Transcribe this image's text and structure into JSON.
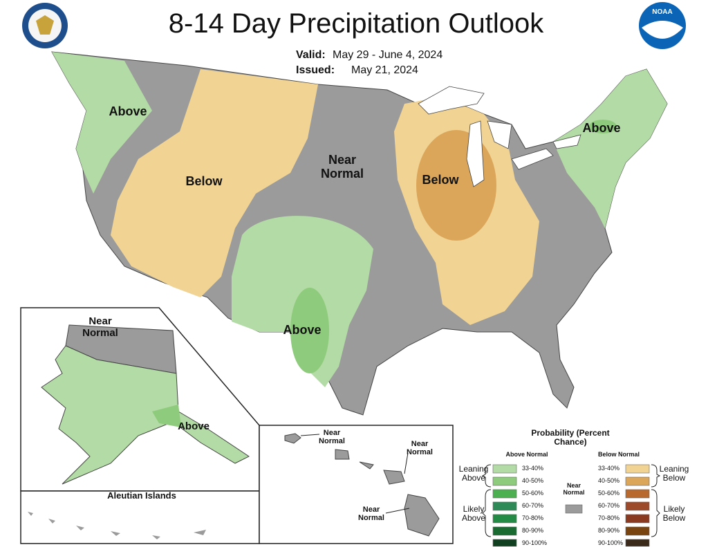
{
  "header": {
    "title": "8-14 Day Precipitation Outlook",
    "valid_label": "Valid:",
    "valid": "May 29 - June 4, 2024",
    "issued_label": "Issued:",
    "issued": "May 21, 2024"
  },
  "logos": {
    "noaa": "NOAA"
  },
  "conus_labels": [
    "Above",
    "Below",
    "Near Normal",
    "Below",
    "Above",
    "Above"
  ],
  "alaska_labels": [
    "Near Normal",
    "Above"
  ],
  "aleutian_title": "Aleutian Islands",
  "hawaii_labels": [
    "Near Normal",
    "Near Normal",
    "Near Normal"
  ],
  "legend": {
    "title": "Probability (Percent Chance)",
    "above_header": "Above Normal",
    "below_header": "Below Normal",
    "leaning_above": "Leaning Above",
    "likely_above": "Likely Above",
    "near_normal": "Near Normal",
    "leaning_below": "Leaning Below",
    "likely_below": "Likely Below",
    "above_ranges": [
      "33-40%",
      "40-50%",
      "50-60%",
      "60-70%",
      "70-80%",
      "80-90%",
      "90-100%"
    ],
    "below_ranges": [
      "33-40%",
      "40-50%",
      "50-60%",
      "60-70%",
      "70-80%",
      "80-90%",
      "90-100%"
    ]
  }
}
